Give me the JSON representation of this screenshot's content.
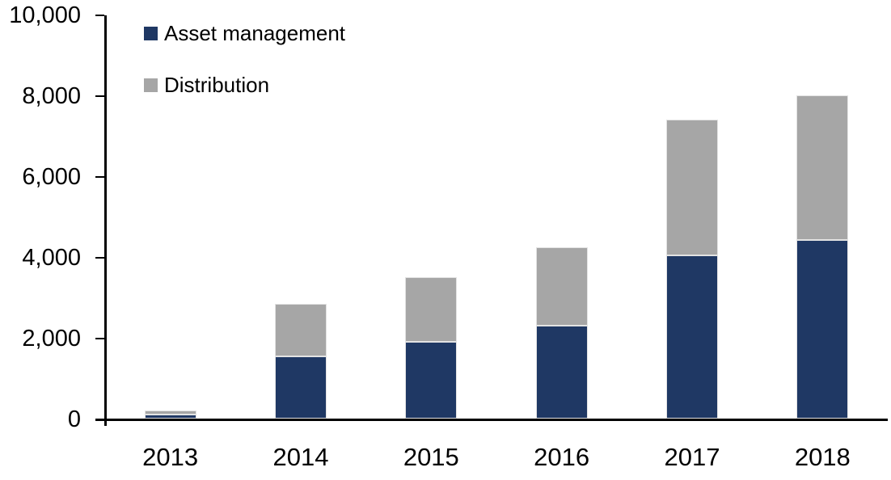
{
  "chart_data": {
    "type": "bar",
    "stacked": true,
    "title": "",
    "xlabel": "",
    "ylabel": "",
    "grid": false,
    "legend_position": "top-left",
    "categories": [
      "2013",
      "2014",
      "2015",
      "2016",
      "2017",
      "2018"
    ],
    "series": [
      {
        "name": "Asset management",
        "color": "#1f3864",
        "values": [
          100,
          1550,
          1900,
          2300,
          4050,
          4430
        ]
      },
      {
        "name": "Distribution",
        "color": "#a6a6a6",
        "values": [
          100,
          1300,
          1600,
          1950,
          3350,
          3570
        ]
      }
    ],
    "ylim": [
      0,
      10000
    ],
    "ytick_values": [
      0,
      2000,
      4000,
      6000,
      8000,
      10000
    ],
    "ytick_labels": [
      "0",
      "2,000",
      "4,000",
      "6,000",
      "8,000",
      "10,000"
    ]
  },
  "colors": {
    "axis": "#000000",
    "background": "#ffffff"
  }
}
